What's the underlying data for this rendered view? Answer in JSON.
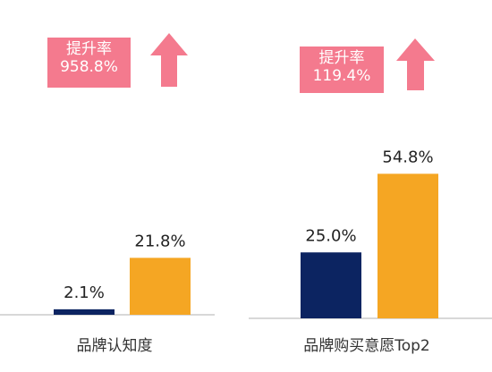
{
  "chart_data": [
    {
      "type": "bar",
      "categories": [
        "品牌认知度"
      ],
      "series": [
        {
          "values": [
            2.1
          ],
          "color": "#0c2461"
        },
        {
          "values": [
            21.8
          ],
          "color": "#f5a623"
        }
      ],
      "data_labels": [
        "2.1%",
        "21.8%"
      ],
      "xlabel": "品牌认知度",
      "ylim": [
        0,
        60
      ],
      "grid": false,
      "annotation": {
        "label": "提升率",
        "value": "958.8%"
      }
    },
    {
      "type": "bar",
      "categories": [
        "品牌购买意愿Top2"
      ],
      "series": [
        {
          "values": [
            25.0
          ],
          "color": "#0c2461"
        },
        {
          "values": [
            54.8
          ],
          "color": "#f5a623"
        }
      ],
      "data_labels": [
        "25.0%",
        "54.8%"
      ],
      "xlabel": "品牌购买意愿Top2",
      "ylim": [
        0,
        60
      ],
      "grid": false,
      "annotation": {
        "label": "提升率",
        "value": "119.4%"
      }
    }
  ],
  "colors": {
    "annotation_box": "#f47a8e",
    "arrow": "#f47a8e",
    "axis": "#cccccc",
    "label_text": "#222222",
    "xlabel_text": "#333333"
  },
  "icons": [
    "up-arrow-icon"
  ]
}
